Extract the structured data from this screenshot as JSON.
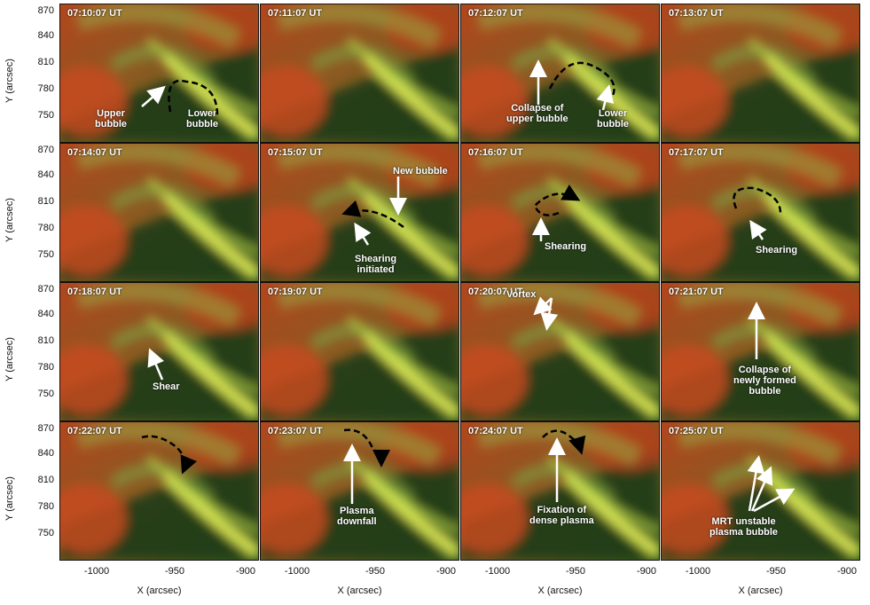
{
  "panels": [
    {
      "time": "07:10:07 UT"
    },
    {
      "time": "07:11:07 UT"
    },
    {
      "time": "07:12:07 UT"
    },
    {
      "time": "07:13:07 UT"
    },
    {
      "time": "07:14:07 UT"
    },
    {
      "time": "07:15:07 UT"
    },
    {
      "time": "07:16:07 UT"
    },
    {
      "time": "07:17:07 UT"
    },
    {
      "time": "07:18:07 UT"
    },
    {
      "time": "07:19:07 UT"
    },
    {
      "time": "07:20:07 UT"
    },
    {
      "time": "07:21:07 UT"
    },
    {
      "time": "07:22:07 UT"
    },
    {
      "time": "07:23:07 UT"
    },
    {
      "time": "07:24:07 UT"
    },
    {
      "time": "07:25:07 UT"
    }
  ],
  "annotations": {
    "upper_bubble": "Upper\nbubble",
    "lower_bubble_1": "Lower\nbubble",
    "collapse_upper": "Collapse of\nupper bubble",
    "lower_bubble_2": "Lower\nbubble",
    "new_bubble": "New bubble",
    "shearing_initiated": "Shearing\ninitiated",
    "shearing_1": "Shearing",
    "shearing_2": "Shearing",
    "shear": "Shear",
    "vortex": "Vortex",
    "collapse_newly": "Collapse of\nnewly formed\nbubble",
    "plasma_downfall": "Plasma\ndownfall",
    "fixation": "Fixation of\ndense plasma",
    "mrt": "MRT unstable\nplasma bubble"
  },
  "axes": {
    "ylabel": "Y (arcsec)",
    "xlabel": "X (arcsec)",
    "yticks": [
      "870",
      "840",
      "810",
      "780",
      "750"
    ],
    "xticks": [
      "-1000",
      "-950",
      "-900"
    ]
  },
  "colors": {
    "red_plasma": "#c0401a",
    "green_plasma": "#2e6b1e",
    "bright": "#e8f060"
  }
}
